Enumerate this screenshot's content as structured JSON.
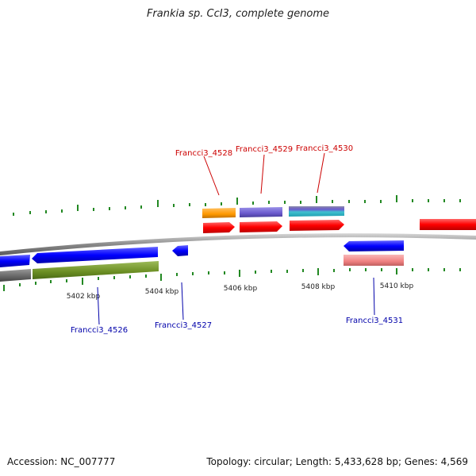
{
  "title": "Frankia sp. CcI3, complete genome",
  "footer": {
    "accession": "Accession: NC_007777",
    "summary": "Topology: circular; Length: 5,433,628 bp; Genes: 4,569"
  },
  "axis": {
    "tick_labels": [
      "5402 kbp",
      "5404 kbp",
      "5406 kbp",
      "5408 kbp",
      "5410 kbp"
    ]
  },
  "gene_labels": {
    "forward": [
      "Francci3_4528",
      "Francci3_4529",
      "Francci3_4530"
    ],
    "reverse": [
      "Francci3_4526",
      "Francci3_4527",
      "Francci3_4531"
    ]
  },
  "colors": {
    "forward_label": "#cc0000",
    "reverse_label": "#0000aa",
    "forward_cds": "#ff0000",
    "reverse_cds": "#0000ff",
    "backbone": "#888888",
    "tick": "#228822",
    "orange_feature": "#ff9900",
    "purple_feature": "#6a5acd",
    "pink_feature": "#f08080",
    "olive_feature": "#6b8e23",
    "gray_feature": "#666666"
  }
}
